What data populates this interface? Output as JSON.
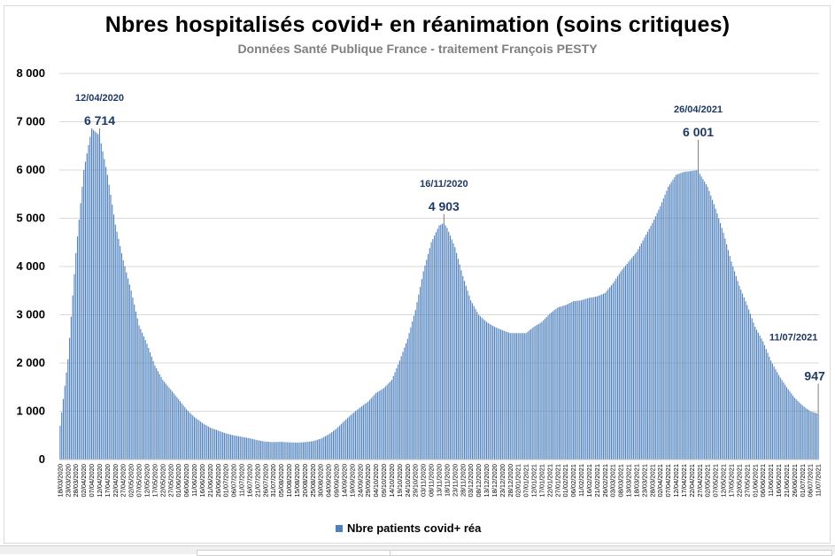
{
  "chart_data": {
    "type": "bar",
    "title": "Nbres hospitalisés covid+ en réanimation (soins critiques)",
    "subtitle": "Données Santé Publique France - traitement François PESTY",
    "ylim": [
      0,
      8000
    ],
    "y_ticks": [
      "0",
      "1 000",
      "2 000",
      "3 000",
      "4 000",
      "5 000",
      "6 000",
      "7 000",
      "8 000"
    ],
    "x_start": "2020-03-18",
    "x_end": "2021-07-11",
    "x_tick_labels": [
      "18/03/2020",
      "23/03/2020",
      "28/03/2020",
      "02/04/2020",
      "07/04/2020",
      "12/04/2020",
      "17/04/2020",
      "22/04/2020",
      "27/04/2020",
      "02/05/2020",
      "07/05/2020",
      "12/05/2020",
      "17/05/2020",
      "22/05/2020",
      "27/05/2020",
      "01/06/2020",
      "06/06/2020",
      "11/06/2020",
      "16/06/2020",
      "21/06/2020",
      "26/06/2020",
      "01/07/2020",
      "06/07/2020",
      "11/07/2020",
      "16/07/2020",
      "21/07/2020",
      "26/07/2020",
      "31/07/2020",
      "05/08/2020",
      "10/08/2020",
      "15/08/2020",
      "20/08/2020",
      "25/08/2020",
      "30/08/2020",
      "04/09/2020",
      "09/09/2020",
      "14/09/2020",
      "19/09/2020",
      "24/09/2020",
      "29/09/2020",
      "04/10/2020",
      "09/10/2020",
      "14/10/2020",
      "19/10/2020",
      "24/10/2020",
      "29/10/2020",
      "03/11/2020",
      "08/11/2020",
      "13/11/2020",
      "18/11/2020",
      "23/11/2020",
      "28/11/2020",
      "03/12/2020",
      "08/12/2020",
      "13/12/2020",
      "18/12/2020",
      "23/12/2020",
      "28/12/2020",
      "02/01/2021",
      "07/01/2021",
      "12/01/2021",
      "17/01/2021",
      "22/01/2021",
      "27/01/2021",
      "01/02/2021",
      "06/02/2021",
      "11/02/2021",
      "16/02/2021",
      "21/02/2021",
      "26/02/2021",
      "03/03/2021",
      "08/03/2021",
      "13/03/2021",
      "18/03/2021",
      "23/03/2021",
      "28/03/2021",
      "02/04/2021",
      "07/04/2021",
      "12/04/2021",
      "17/04/2021",
      "22/04/2021",
      "27/04/2021",
      "02/05/2021",
      "07/05/2021",
      "12/05/2021",
      "17/05/2021",
      "22/05/2021",
      "27/05/2021",
      "01/06/2021",
      "06/06/2021",
      "11/06/2021",
      "16/06/2021",
      "21/06/2021",
      "26/06/2021",
      "01/07/2021",
      "06/07/2021",
      "11/07/2021"
    ],
    "series": [
      {
        "name": "Nbre patients covid+ réa",
        "color": "#4f81bd",
        "points": [
          [
            "2020-03-18",
            700
          ],
          [
            "2020-03-23",
            2080
          ],
          [
            "2020-03-28",
            4280
          ],
          [
            "2020-04-02",
            6000
          ],
          [
            "2020-04-07",
            6860
          ],
          [
            "2020-04-12",
            6714
          ],
          [
            "2020-04-17",
            5900
          ],
          [
            "2020-04-22",
            4870
          ],
          [
            "2020-04-27",
            4130
          ],
          [
            "2020-05-02",
            3500
          ],
          [
            "2020-05-07",
            2780
          ],
          [
            "2020-05-12",
            2400
          ],
          [
            "2020-05-17",
            1950
          ],
          [
            "2020-05-22",
            1650
          ],
          [
            "2020-05-27",
            1450
          ],
          [
            "2020-06-01",
            1250
          ],
          [
            "2020-06-06",
            1040
          ],
          [
            "2020-06-11",
            880
          ],
          [
            "2020-06-16",
            760
          ],
          [
            "2020-06-21",
            660
          ],
          [
            "2020-06-26",
            600
          ],
          [
            "2020-07-01",
            540
          ],
          [
            "2020-07-06",
            500
          ],
          [
            "2020-07-11",
            470
          ],
          [
            "2020-07-16",
            440
          ],
          [
            "2020-07-21",
            400
          ],
          [
            "2020-07-26",
            370
          ],
          [
            "2020-07-31",
            360
          ],
          [
            "2020-08-05",
            365
          ],
          [
            "2020-08-10",
            355
          ],
          [
            "2020-08-15",
            350
          ],
          [
            "2020-08-20",
            360
          ],
          [
            "2020-08-25",
            380
          ],
          [
            "2020-08-30",
            430
          ],
          [
            "2020-09-04",
            520
          ],
          [
            "2020-09-09",
            640
          ],
          [
            "2020-09-14",
            800
          ],
          [
            "2020-09-19",
            950
          ],
          [
            "2020-09-24",
            1080
          ],
          [
            "2020-09-29",
            1200
          ],
          [
            "2020-10-04",
            1380
          ],
          [
            "2020-10-09",
            1480
          ],
          [
            "2020-10-14",
            1650
          ],
          [
            "2020-10-19",
            2050
          ],
          [
            "2020-10-24",
            2500
          ],
          [
            "2020-10-29",
            3100
          ],
          [
            "2020-11-03",
            3900
          ],
          [
            "2020-11-08",
            4500
          ],
          [
            "2020-11-13",
            4850
          ],
          [
            "2020-11-16",
            4903
          ],
          [
            "2020-11-18",
            4800
          ],
          [
            "2020-11-23",
            4400
          ],
          [
            "2020-11-28",
            3800
          ],
          [
            "2020-12-03",
            3300
          ],
          [
            "2020-12-08",
            3000
          ],
          [
            "2020-12-13",
            2850
          ],
          [
            "2020-12-18",
            2750
          ],
          [
            "2020-12-23",
            2680
          ],
          [
            "2020-12-28",
            2620
          ],
          [
            "2021-01-02",
            2620
          ],
          [
            "2021-01-07",
            2620
          ],
          [
            "2021-01-12",
            2750
          ],
          [
            "2021-01-17",
            2850
          ],
          [
            "2021-01-22",
            3020
          ],
          [
            "2021-01-27",
            3150
          ],
          [
            "2021-02-01",
            3200
          ],
          [
            "2021-02-06",
            3280
          ],
          [
            "2021-02-11",
            3300
          ],
          [
            "2021-02-16",
            3350
          ],
          [
            "2021-02-21",
            3380
          ],
          [
            "2021-02-26",
            3450
          ],
          [
            "2021-03-03",
            3650
          ],
          [
            "2021-03-08",
            3900
          ],
          [
            "2021-03-13",
            4100
          ],
          [
            "2021-03-18",
            4300
          ],
          [
            "2021-03-23",
            4600
          ],
          [
            "2021-03-28",
            4900
          ],
          [
            "2021-04-02",
            5250
          ],
          [
            "2021-04-07",
            5650
          ],
          [
            "2021-04-12",
            5900
          ],
          [
            "2021-04-17",
            5960
          ],
          [
            "2021-04-22",
            5980
          ],
          [
            "2021-04-26",
            6001
          ],
          [
            "2021-04-27",
            5920
          ],
          [
            "2021-05-02",
            5650
          ],
          [
            "2021-05-07",
            5200
          ],
          [
            "2021-05-12",
            4700
          ],
          [
            "2021-05-17",
            4100
          ],
          [
            "2021-05-22",
            3600
          ],
          [
            "2021-05-27",
            3200
          ],
          [
            "2021-06-01",
            2750
          ],
          [
            "2021-06-06",
            2450
          ],
          [
            "2021-06-11",
            2050
          ],
          [
            "2021-06-16",
            1750
          ],
          [
            "2021-06-21",
            1500
          ],
          [
            "2021-06-26",
            1280
          ],
          [
            "2021-07-01",
            1120
          ],
          [
            "2021-07-06",
            1000
          ],
          [
            "2021-07-11",
            947
          ]
        ]
      }
    ],
    "annotations": [
      {
        "date_label": "12/04/2020",
        "value_label": "6 714",
        "date": "2020-04-12",
        "value": 6714
      },
      {
        "date_label": "16/11/2020",
        "value_label": "4 903",
        "date": "2020-11-16",
        "value": 4903
      },
      {
        "date_label": "26/04/2021",
        "value_label": "6 001",
        "date": "2021-04-26",
        "value": 6001
      },
      {
        "date_label": "11/07/2021",
        "value_label": "947",
        "date": "2021-07-11",
        "value": 947
      }
    ],
    "grid": "horizontal",
    "legend": "bottom"
  }
}
